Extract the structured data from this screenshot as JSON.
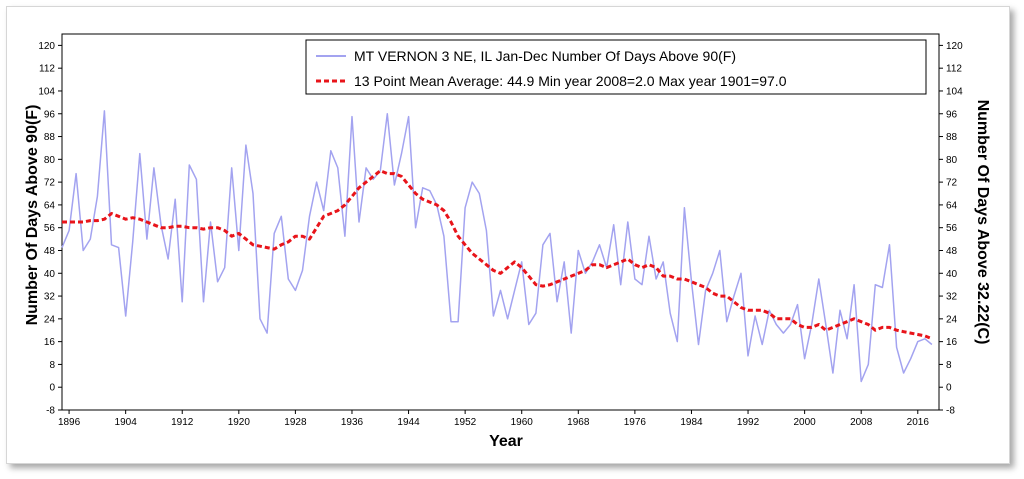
{
  "chart_data": {
    "type": "line",
    "title": "MT VERNON 3 NE, IL  Jan-Dec  Number Of Days Above 90(F)",
    "xlabel": "Year",
    "ylabel_left": "Number Of Days Above 90(F)",
    "ylabel_right": "Number Of Days Above 32.22(C)",
    "xlim": [
      1895,
      2019
    ],
    "ylim": [
      -8,
      124
    ],
    "x_ticks": [
      1896,
      1904,
      1912,
      1920,
      1928,
      1936,
      1944,
      1952,
      1960,
      1968,
      1976,
      1984,
      1992,
      2000,
      2008,
      2016
    ],
    "y_ticks": [
      -8,
      0,
      8,
      16,
      24,
      32,
      40,
      48,
      56,
      64,
      72,
      80,
      88,
      96,
      104,
      112,
      120
    ],
    "legend_position": "top-right",
    "colors": {
      "annual": "#a3a3f0",
      "mean": "#e8141a"
    },
    "series": [
      {
        "name": "MT VERNON 3 NE, IL  Jan-Dec  Number Of Days Above 90(F)",
        "style": "line",
        "x": [
          1895,
          1896,
          1897,
          1898,
          1899,
          1900,
          1901,
          1902,
          1903,
          1904,
          1905,
          1906,
          1907,
          1908,
          1909,
          1910,
          1911,
          1912,
          1913,
          1914,
          1915,
          1916,
          1917,
          1918,
          1919,
          1920,
          1921,
          1922,
          1923,
          1924,
          1925,
          1926,
          1927,
          1928,
          1929,
          1930,
          1931,
          1932,
          1933,
          1934,
          1935,
          1936,
          1937,
          1938,
          1939,
          1940,
          1941,
          1942,
          1943,
          1944,
          1945,
          1946,
          1947,
          1948,
          1949,
          1950,
          1951,
          1952,
          1953,
          1954,
          1955,
          1956,
          1957,
          1958,
          1959,
          1960,
          1961,
          1962,
          1963,
          1964,
          1965,
          1966,
          1967,
          1968,
          1969,
          1970,
          1971,
          1972,
          1973,
          1974,
          1975,
          1976,
          1977,
          1978,
          1979,
          1980,
          1981,
          1982,
          1983,
          1984,
          1985,
          1986,
          1987,
          1988,
          1989,
          1990,
          1991,
          1992,
          1993,
          1994,
          1995,
          1996,
          1997,
          1998,
          1999,
          2000,
          2001,
          2002,
          2003,
          2004,
          2005,
          2006,
          2007,
          2008,
          2009,
          2010,
          2011,
          2012,
          2013,
          2014,
          2015,
          2016,
          2017,
          2018
        ],
        "values": [
          49,
          55,
          75,
          48,
          52,
          67,
          97,
          50,
          49,
          25,
          51,
          82,
          52,
          77,
          57,
          45,
          66,
          30,
          78,
          73,
          30,
          58,
          37,
          42,
          77,
          48,
          85,
          68,
          24,
          19,
          54,
          60,
          38,
          34,
          41,
          60,
          72,
          62,
          83,
          77,
          53,
          95,
          58,
          77,
          73,
          76,
          96,
          71,
          82,
          95,
          56,
          70,
          69,
          64,
          53,
          23,
          23,
          63,
          72,
          68,
          55,
          25,
          34,
          24,
          34,
          44,
          22,
          26,
          50,
          54,
          30,
          44,
          19,
          48,
          40,
          44,
          50,
          42,
          57,
          36,
          58,
          38,
          36,
          53,
          38,
          44,
          26,
          16,
          63,
          37,
          15,
          34,
          40,
          48,
          23,
          32,
          40,
          11,
          25,
          15,
          27,
          22,
          19,
          22,
          29,
          10,
          22,
          38,
          22,
          5,
          27,
          17,
          36,
          2,
          8,
          36,
          35,
          50,
          14,
          5,
          10,
          16,
          17,
          15
        ]
      },
      {
        "name": "13 Point Mean  Average: 44.9  Min year 2008=2.0  Max year 1901=97.0",
        "style": "dashed",
        "x": [
          1895,
          1896,
          1897,
          1898,
          1899,
          1900,
          1901,
          1902,
          1903,
          1904,
          1905,
          1906,
          1907,
          1908,
          1909,
          1910,
          1911,
          1912,
          1913,
          1914,
          1915,
          1916,
          1917,
          1918,
          1919,
          1920,
          1921,
          1922,
          1923,
          1924,
          1925,
          1926,
          1927,
          1928,
          1929,
          1930,
          1931,
          1932,
          1933,
          1934,
          1935,
          1936,
          1937,
          1938,
          1939,
          1940,
          1941,
          1942,
          1943,
          1944,
          1945,
          1946,
          1947,
          1948,
          1949,
          1950,
          1951,
          1952,
          1953,
          1954,
          1955,
          1956,
          1957,
          1958,
          1959,
          1960,
          1961,
          1962,
          1963,
          1964,
          1965,
          1966,
          1967,
          1968,
          1969,
          1970,
          1971,
          1972,
          1973,
          1974,
          1975,
          1976,
          1977,
          1978,
          1979,
          1980,
          1981,
          1982,
          1983,
          1984,
          1985,
          1986,
          1987,
          1988,
          1989,
          1990,
          1991,
          1992,
          1993,
          1994,
          1995,
          1996,
          1997,
          1998,
          1999,
          2000,
          2001,
          2002,
          2003,
          2004,
          2005,
          2006,
          2007,
          2008,
          2009,
          2010,
          2011,
          2012,
          2013,
          2014,
          2015,
          2016,
          2017,
          2018
        ],
        "values": [
          58,
          58,
          58,
          58,
          58.5,
          58.5,
          59,
          61,
          60,
          59,
          59.5,
          59,
          58,
          57,
          56,
          56,
          56.5,
          56.5,
          56,
          56,
          55.5,
          56,
          56,
          55,
          53,
          54,
          52,
          50,
          49.5,
          49,
          48.5,
          50,
          51,
          53,
          53,
          52,
          56,
          60,
          61,
          62,
          64,
          67,
          70,
          72,
          74,
          76,
          75,
          75,
          74,
          71,
          68,
          66,
          65,
          64,
          62,
          58,
          53,
          50,
          47,
          45,
          43,
          41,
          40,
          42,
          44,
          42,
          39,
          36,
          35.5,
          36,
          37,
          38,
          39,
          40,
          41,
          43,
          43,
          42,
          43,
          44,
          45,
          43,
          42,
          43,
          42,
          39,
          39,
          38,
          38,
          37,
          36,
          35,
          33,
          32,
          32,
          30,
          28,
          27,
          27,
          27,
          26,
          24,
          24,
          24,
          22,
          21,
          21,
          22,
          20,
          21,
          22,
          23,
          24,
          23,
          22,
          20,
          21,
          21,
          20,
          19.5,
          19,
          18.5,
          18,
          17
        ]
      }
    ]
  }
}
